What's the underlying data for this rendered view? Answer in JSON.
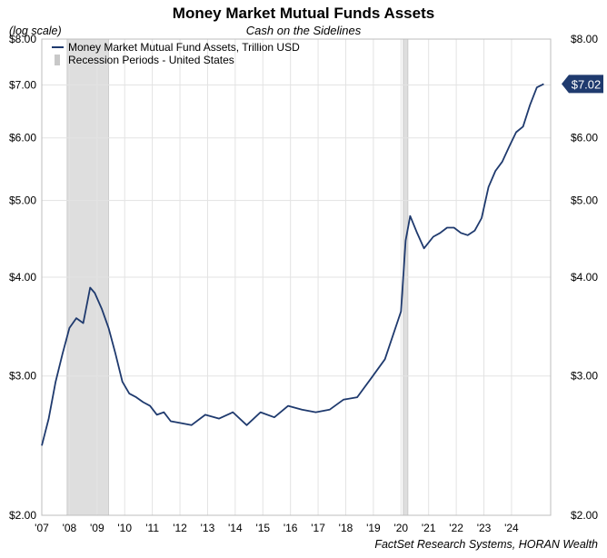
{
  "chart_data": {
    "type": "line",
    "title": "Money Market Mutual Funds Assets",
    "subtitle": "Cash on the Sidelines",
    "scale_note": "(log scale)",
    "source": "FactSet Research Systems, HORAN Wealth",
    "y_scale": "log",
    "ylim": [
      2.0,
      8.0
    ],
    "xlim": [
      "2007-01",
      "2025-06"
    ],
    "grid": true,
    "legend_placement": "top-left",
    "y_ticks": [
      {
        "value": 2.0,
        "label": "$2.00"
      },
      {
        "value": 3.0,
        "label": "$3.00"
      },
      {
        "value": 4.0,
        "label": "$4.00"
      },
      {
        "value": 5.0,
        "label": "$5.00"
      },
      {
        "value": 6.0,
        "label": "$6.00"
      },
      {
        "value": 7.0,
        "label": "$7.00"
      },
      {
        "value": 8.0,
        "label": "$8.00"
      }
    ],
    "x_ticks": [
      {
        "value": "2007-01",
        "label": "'07"
      },
      {
        "value": "2008-01",
        "label": "'08"
      },
      {
        "value": "2009-01",
        "label": "'09"
      },
      {
        "value": "2010-01",
        "label": "'10"
      },
      {
        "value": "2011-01",
        "label": "'11"
      },
      {
        "value": "2012-01",
        "label": "'12"
      },
      {
        "value": "2013-01",
        "label": "'13"
      },
      {
        "value": "2014-01",
        "label": "'14"
      },
      {
        "value": "2015-01",
        "label": "'15"
      },
      {
        "value": "2016-01",
        "label": "'16"
      },
      {
        "value": "2017-01",
        "label": "'17"
      },
      {
        "value": "2018-01",
        "label": "'18"
      },
      {
        "value": "2019-01",
        "label": "'19"
      },
      {
        "value": "2020-01",
        "label": "'20"
      },
      {
        "value": "2021-01",
        "label": "'21"
      },
      {
        "value": "2022-01",
        "label": "'22"
      },
      {
        "value": "2023-01",
        "label": "'23"
      },
      {
        "value": "2024-01",
        "label": "'24"
      }
    ],
    "recessions": [
      {
        "start": "2007-12",
        "end": "2009-06"
      },
      {
        "start": "2020-02",
        "end": "2020-04"
      }
    ],
    "series": [
      {
        "name": "Money Market Mutual Fund Assets, Trillion USD",
        "color": "#1f3a6e",
        "points": [
          [
            "2007-01",
            2.45
          ],
          [
            "2007-04",
            2.65
          ],
          [
            "2007-07",
            2.95
          ],
          [
            "2007-10",
            3.2
          ],
          [
            "2008-01",
            3.45
          ],
          [
            "2008-04",
            3.55
          ],
          [
            "2008-07",
            3.5
          ],
          [
            "2008-09",
            3.75
          ],
          [
            "2008-10",
            3.88
          ],
          [
            "2008-12",
            3.82
          ],
          [
            "2009-03",
            3.65
          ],
          [
            "2009-06",
            3.45
          ],
          [
            "2009-09",
            3.2
          ],
          [
            "2009-12",
            2.95
          ],
          [
            "2010-03",
            2.85
          ],
          [
            "2010-06",
            2.82
          ],
          [
            "2010-09",
            2.78
          ],
          [
            "2010-12",
            2.75
          ],
          [
            "2011-03",
            2.68
          ],
          [
            "2011-06",
            2.7
          ],
          [
            "2011-09",
            2.63
          ],
          [
            "2011-12",
            2.62
          ],
          [
            "2012-06",
            2.6
          ],
          [
            "2012-12",
            2.68
          ],
          [
            "2013-06",
            2.65
          ],
          [
            "2013-12",
            2.7
          ],
          [
            "2014-06",
            2.6
          ],
          [
            "2014-12",
            2.7
          ],
          [
            "2015-06",
            2.66
          ],
          [
            "2015-12",
            2.75
          ],
          [
            "2016-06",
            2.72
          ],
          [
            "2016-12",
            2.7
          ],
          [
            "2017-06",
            2.72
          ],
          [
            "2017-12",
            2.8
          ],
          [
            "2018-06",
            2.82
          ],
          [
            "2018-12",
            2.98
          ],
          [
            "2019-06",
            3.15
          ],
          [
            "2019-12",
            3.55
          ],
          [
            "2020-01",
            3.62
          ],
          [
            "2020-03",
            4.45
          ],
          [
            "2020-05",
            4.78
          ],
          [
            "2020-08",
            4.55
          ],
          [
            "2020-11",
            4.35
          ],
          [
            "2021-03",
            4.5
          ],
          [
            "2021-06",
            4.55
          ],
          [
            "2021-09",
            4.62
          ],
          [
            "2021-12",
            4.62
          ],
          [
            "2022-03",
            4.55
          ],
          [
            "2022-06",
            4.52
          ],
          [
            "2022-09",
            4.58
          ],
          [
            "2022-12",
            4.75
          ],
          [
            "2023-03",
            5.2
          ],
          [
            "2023-06",
            5.45
          ],
          [
            "2023-09",
            5.6
          ],
          [
            "2023-12",
            5.85
          ],
          [
            "2024-03",
            6.1
          ],
          [
            "2024-06",
            6.2
          ],
          [
            "2024-09",
            6.6
          ],
          [
            "2024-12",
            6.95
          ],
          [
            "2025-03",
            7.02
          ]
        ]
      }
    ],
    "legend": [
      {
        "label": "Money Market Mutual Fund Assets, Trillion USD",
        "kind": "line",
        "color": "#1f3a6e"
      },
      {
        "label": "Recession Periods - United States",
        "kind": "box",
        "color": "#c8c8c8"
      }
    ],
    "end_label": "$7.02"
  }
}
